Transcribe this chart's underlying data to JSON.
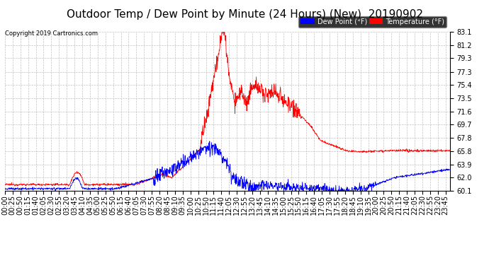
{
  "title": "Outdoor Temp / Dew Point by Minute (24 Hours) (New)  20190902",
  "copyright": "Copyright 2019 Cartronics.com",
  "legend_dew": "Dew Point (°F)",
  "legend_temp": "Temperature (°F)",
  "y_ticks": [
    60.1,
    62.0,
    63.9,
    65.8,
    67.8,
    69.7,
    71.6,
    73.5,
    75.4,
    77.3,
    79.3,
    81.2,
    83.1
  ],
  "ylim": [
    60.1,
    83.1
  ],
  "background_color": "#ffffff",
  "grid_color": "#bbbbbb",
  "temp_color": "#ff0000",
  "dew_color": "#0000ff",
  "title_fontsize": 11,
  "tick_fontsize": 7,
  "n_points": 1440,
  "x_tick_interval": 25
}
